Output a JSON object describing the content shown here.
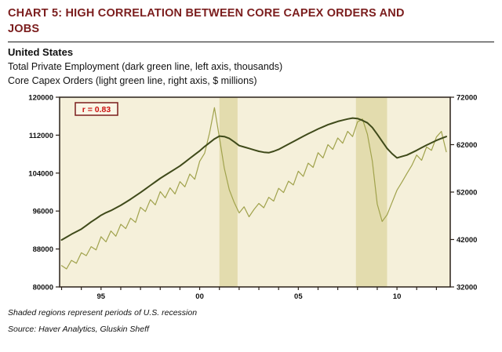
{
  "header": {
    "title": "CHART 5: HIGH CORRELATION BETWEEN CORE CAPEX ORDERS AND JOBS",
    "region": "United States",
    "series1_desc": "Total Private Employment (dark green line, left axis, thousands)",
    "series2_desc": "Core Capex Orders (light green line, right axis, $ millions)"
  },
  "footer": {
    "note": "Shaded regions represent periods of U.S. recession",
    "source": "Source: Haver Analytics, Gluskin Sheff"
  },
  "colors": {
    "title": "#7b1d1d",
    "plot_bg": "#f5f0da",
    "recession_band": "#e3dcae",
    "employment_line": "#3f4a1a",
    "capex_line": "#a0a24c",
    "axis": "#2a2119",
    "tick_text": "#111111",
    "r_text": "#cc1111",
    "r_border": "#7b1d1d",
    "r_bg": "#faf6e6"
  },
  "chart_data": {
    "type": "line",
    "title": "High correlation between core capex orders and jobs (United States)",
    "xlabel": "",
    "ylabel_left": "Total Private Employment (thousands)",
    "ylabel_right": "Core Capex Orders ($ millions)",
    "grid": false,
    "legend_position": "none",
    "annotation": {
      "label": "r = 0.83"
    },
    "x_axis": {
      "min": 1992.9,
      "max": 2012.7,
      "tick_year_start": 1993,
      "tick_year_end": 2012,
      "labels": {
        "1995": "95",
        "2000": "00",
        "2005": "05",
        "2010": "10"
      }
    },
    "left_axis": {
      "min": 80000,
      "max": 120000,
      "ticks": [
        80000,
        88000,
        96000,
        104000,
        112000,
        120000
      ]
    },
    "right_axis": {
      "min": 32000,
      "max": 72000,
      "ticks": [
        32000,
        42000,
        52000,
        62000,
        72000
      ]
    },
    "recessions": [
      [
        2001.0,
        2001.92
      ],
      [
        2007.92,
        2009.5
      ]
    ],
    "x": [
      1993.0,
      1993.25,
      1993.5,
      1993.75,
      1994.0,
      1994.25,
      1994.5,
      1994.75,
      1995.0,
      1995.25,
      1995.5,
      1995.75,
      1996.0,
      1996.25,
      1996.5,
      1996.75,
      1997.0,
      1997.25,
      1997.5,
      1997.75,
      1998.0,
      1998.25,
      1998.5,
      1998.75,
      1999.0,
      1999.25,
      1999.5,
      1999.75,
      2000.0,
      2000.25,
      2000.5,
      2000.75,
      2001.0,
      2001.25,
      2001.5,
      2001.75,
      2002.0,
      2002.25,
      2002.5,
      2002.75,
      2003.0,
      2003.25,
      2003.5,
      2003.75,
      2004.0,
      2004.25,
      2004.5,
      2004.75,
      2005.0,
      2005.25,
      2005.5,
      2005.75,
      2006.0,
      2006.25,
      2006.5,
      2006.75,
      2007.0,
      2007.25,
      2007.5,
      2007.75,
      2008.0,
      2008.25,
      2008.5,
      2008.75,
      2009.0,
      2009.25,
      2009.5,
      2009.75,
      2010.0,
      2010.25,
      2010.5,
      2010.75,
      2011.0,
      2011.25,
      2011.5,
      2011.75,
      2012.0,
      2012.25,
      2012.5
    ],
    "series": [
      {
        "name": "Total Private Employment",
        "axis": "left",
        "color_key": "employment_line",
        "width": 2,
        "values": [
          89900,
          90500,
          91100,
          91650,
          92200,
          92950,
          93700,
          94400,
          95100,
          95650,
          96100,
          96650,
          97200,
          97850,
          98500,
          99200,
          99900,
          100650,
          101400,
          102150,
          102900,
          103550,
          104200,
          104850,
          105500,
          106300,
          107100,
          107900,
          108700,
          109600,
          110400,
          111200,
          111800,
          111700,
          111300,
          110600,
          109800,
          109500,
          109200,
          108900,
          108600,
          108400,
          108300,
          108600,
          109000,
          109550,
          110100,
          110650,
          111200,
          111750,
          112300,
          112800,
          113300,
          113750,
          114200,
          114550,
          114900,
          115150,
          115400,
          115600,
          115500,
          115100,
          114600,
          113600,
          112200,
          110700,
          109200,
          108100,
          107200,
          107500,
          107800,
          108300,
          108800,
          109350,
          109900,
          110400,
          110900,
          111300,
          111700
        ]
      },
      {
        "name": "Core Capex Orders",
        "axis": "right",
        "color_key": "capex_line",
        "width": 1.2,
        "values": [
          36500,
          35800,
          37600,
          37000,
          39200,
          38600,
          40500,
          39800,
          42600,
          41500,
          43800,
          42700,
          45200,
          44300,
          46500,
          45600,
          48800,
          47900,
          50400,
          49300,
          52100,
          50800,
          52900,
          51600,
          54200,
          53100,
          55800,
          54700,
          58500,
          60200,
          64500,
          69800,
          63500,
          57000,
          52500,
          49800,
          47600,
          48900,
          46800,
          48300,
          49600,
          48700,
          50900,
          50100,
          52800,
          51900,
          54300,
          53500,
          56400,
          55300,
          58100,
          57200,
          60300,
          59200,
          62000,
          61000,
          63400,
          62300,
          64800,
          63700,
          66800,
          67400,
          64200,
          58500,
          49500,
          45800,
          47200,
          49800,
          52400,
          54100,
          55900,
          57600,
          59800,
          58700,
          61500,
          60800,
          63600,
          64800,
          60500
        ]
      }
    ]
  }
}
